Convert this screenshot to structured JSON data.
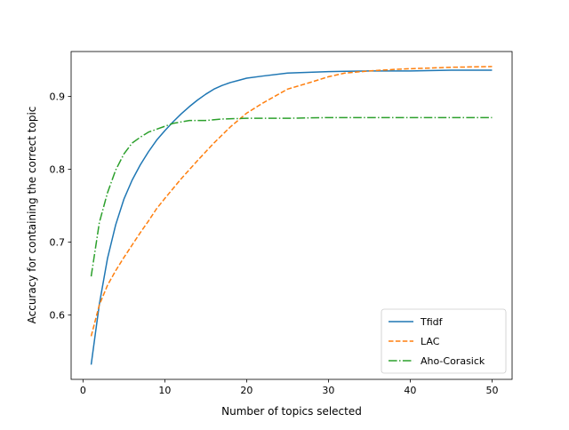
{
  "chart_data": {
    "type": "line",
    "title": "",
    "xlabel": "Number of topics selected",
    "ylabel": "Accuracy for containing the correct topic",
    "xlim": [
      -1.45,
      52.45
    ],
    "ylim": [
      0.5118,
      0.9616
    ],
    "xticks": [
      0,
      10,
      20,
      30,
      40,
      50
    ],
    "yticks": [
      0.6,
      0.7,
      0.8,
      0.9
    ],
    "xtick_labels": [
      "0",
      "10",
      "20",
      "30",
      "40",
      "50"
    ],
    "ytick_labels": [
      "0.6",
      "0.7",
      "0.8",
      "0.9"
    ],
    "grid": false,
    "legend_position": "lower-right",
    "series": [
      {
        "name": "Tfidf",
        "color": "#1f77b4",
        "style": "solid",
        "x": [
          1,
          2,
          3,
          4,
          5,
          6,
          7,
          8,
          9,
          10,
          11,
          12,
          13,
          14,
          15,
          16,
          17,
          18,
          19,
          20,
          22,
          25,
          30,
          35,
          40,
          45,
          50
        ],
        "y": [
          0.532,
          0.615,
          0.678,
          0.724,
          0.759,
          0.785,
          0.806,
          0.824,
          0.84,
          0.853,
          0.865,
          0.876,
          0.886,
          0.895,
          0.903,
          0.91,
          0.915,
          0.919,
          0.922,
          0.925,
          0.928,
          0.932,
          0.934,
          0.935,
          0.935,
          0.936,
          0.936
        ]
      },
      {
        "name": "LAC",
        "color": "#ff7f0e",
        "style": "dashed",
        "x": [
          1,
          2,
          3,
          4,
          5,
          6,
          7,
          8,
          9,
          10,
          12,
          14,
          16,
          18,
          20,
          22,
          25,
          28,
          30,
          32,
          35,
          38,
          40,
          45,
          50
        ],
        "y": [
          0.571,
          0.614,
          0.641,
          0.661,
          0.679,
          0.696,
          0.713,
          0.729,
          0.746,
          0.76,
          0.787,
          0.812,
          0.836,
          0.858,
          0.877,
          0.891,
          0.91,
          0.92,
          0.927,
          0.932,
          0.935,
          0.937,
          0.938,
          0.94,
          0.941
        ]
      },
      {
        "name": "Aho-Corasick",
        "color": "#2ca02c",
        "style": "dashdot",
        "x": [
          1,
          2,
          3,
          4,
          5,
          6,
          7,
          8,
          9,
          10,
          11,
          12,
          13,
          14,
          15,
          17,
          20,
          25,
          30,
          40,
          50
        ],
        "y": [
          0.653,
          0.727,
          0.768,
          0.799,
          0.821,
          0.836,
          0.844,
          0.851,
          0.855,
          0.859,
          0.863,
          0.865,
          0.867,
          0.867,
          0.867,
          0.869,
          0.87,
          0.87,
          0.871,
          0.871,
          0.871
        ]
      }
    ]
  }
}
